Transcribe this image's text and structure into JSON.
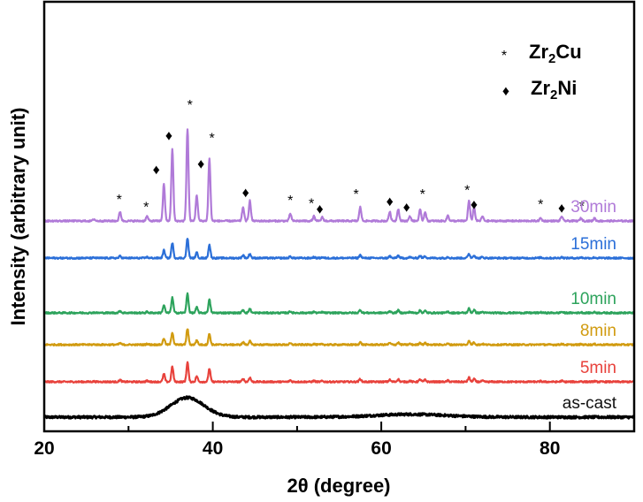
{
  "chart_data": {
    "type": "line",
    "title": "",
    "xlabel": "2θ (degree)",
    "ylabel": "Intensity (arbitrary unit)",
    "xlim": [
      20,
      90
    ],
    "xticks": [
      20,
      40,
      60,
      80
    ],
    "yticks_shown": false,
    "legend": [
      {
        "symbol": "*",
        "phase": "Zr",
        "subscript": "2",
        "suffix": "Cu"
      },
      {
        "symbol": "♦",
        "phase": "Zr",
        "subscript": "2",
        "suffix": "Ni"
      }
    ],
    "legend_position": "top-right",
    "series": [
      {
        "name": "as-cast",
        "color": "#000000",
        "kind": "amorphous",
        "baseline": 0.0,
        "humps": [
          {
            "pos": 37.0,
            "width": 2.8,
            "height": 0.55
          },
          {
            "pos": 63.5,
            "width": 6.0,
            "height": 0.08
          }
        ]
      },
      {
        "name": "5min",
        "color": "#e8423c",
        "kind": "crystalline",
        "baseline": 1.0,
        "scale": 0.55
      },
      {
        "name": "8min",
        "color": "#d19b10",
        "kind": "crystalline",
        "baseline": 2.05,
        "scale": 0.45
      },
      {
        "name": "10min",
        "color": "#2da35c",
        "kind": "crystalline",
        "baseline": 2.95,
        "scale": 0.55
      },
      {
        "name": "15min",
        "color": "#2b6fd8",
        "kind": "crystalline",
        "baseline": 4.5,
        "scale": 0.55
      },
      {
        "name": "30min",
        "color": "#b07ad8",
        "kind": "crystalline",
        "baseline": 5.55,
        "scale": 2.6
      }
    ],
    "peaks": [
      {
        "pos": 25.9,
        "h": 0.02
      },
      {
        "pos": 29.0,
        "h": 0.1
      },
      {
        "pos": 32.2,
        "h": 0.05
      },
      {
        "pos": 34.2,
        "h": 0.4
      },
      {
        "pos": 35.2,
        "h": 0.78
      },
      {
        "pos": 37.0,
        "h": 1.0
      },
      {
        "pos": 38.1,
        "h": 0.28
      },
      {
        "pos": 39.6,
        "h": 0.68
      },
      {
        "pos": 43.6,
        "h": 0.15
      },
      {
        "pos": 44.4,
        "h": 0.22
      },
      {
        "pos": 49.2,
        "h": 0.08
      },
      {
        "pos": 52.0,
        "h": 0.05
      },
      {
        "pos": 53.0,
        "h": 0.04
      },
      {
        "pos": 57.5,
        "h": 0.15
      },
      {
        "pos": 61.0,
        "h": 0.1
      },
      {
        "pos": 62.0,
        "h": 0.13
      },
      {
        "pos": 63.4,
        "h": 0.05
      },
      {
        "pos": 64.6,
        "h": 0.12
      },
      {
        "pos": 65.2,
        "h": 0.1
      },
      {
        "pos": 67.9,
        "h": 0.06
      },
      {
        "pos": 70.4,
        "h": 0.22
      },
      {
        "pos": 71.0,
        "h": 0.15
      },
      {
        "pos": 72.0,
        "h": 0.05
      },
      {
        "pos": 78.9,
        "h": 0.03
      },
      {
        "pos": 81.4,
        "h": 0.05
      },
      {
        "pos": 83.7,
        "h": 0.03
      },
      {
        "pos": 85.3,
        "h": 0.03
      }
    ],
    "annotations_30min": [
      {
        "x": 28.9,
        "symbol": "*",
        "level": 0.22
      },
      {
        "x": 32.1,
        "symbol": "*",
        "level": 0.14
      },
      {
        "x": 33.3,
        "symbol": "♦",
        "level": 0.55
      },
      {
        "x": 34.8,
        "symbol": "♦",
        "level": 0.92
      },
      {
        "x": 37.3,
        "symbol": "*",
        "level": 1.25
      },
      {
        "x": 38.6,
        "symbol": "♦",
        "level": 0.61
      },
      {
        "x": 39.9,
        "symbol": "*",
        "level": 0.89
      },
      {
        "x": 43.9,
        "symbol": "♦",
        "level": 0.3
      },
      {
        "x": 49.2,
        "symbol": "*",
        "level": 0.21
      },
      {
        "x": 51.7,
        "symbol": "*",
        "level": 0.18
      },
      {
        "x": 52.7,
        "symbol": "♦",
        "level": 0.12
      },
      {
        "x": 57.0,
        "symbol": "*",
        "level": 0.28
      },
      {
        "x": 61.0,
        "symbol": "♦",
        "level": 0.2
      },
      {
        "x": 63.0,
        "symbol": "♦",
        "level": 0.14
      },
      {
        "x": 64.9,
        "symbol": "*",
        "level": 0.28
      },
      {
        "x": 70.2,
        "symbol": "*",
        "level": 0.32
      },
      {
        "x": 71.0,
        "symbol": "♦",
        "level": 0.17
      },
      {
        "x": 78.9,
        "symbol": "*",
        "level": 0.17
      },
      {
        "x": 81.4,
        "symbol": "♦",
        "level": 0.13
      },
      {
        "x": 83.8,
        "symbol": "*",
        "level": 0.15
      }
    ]
  }
}
